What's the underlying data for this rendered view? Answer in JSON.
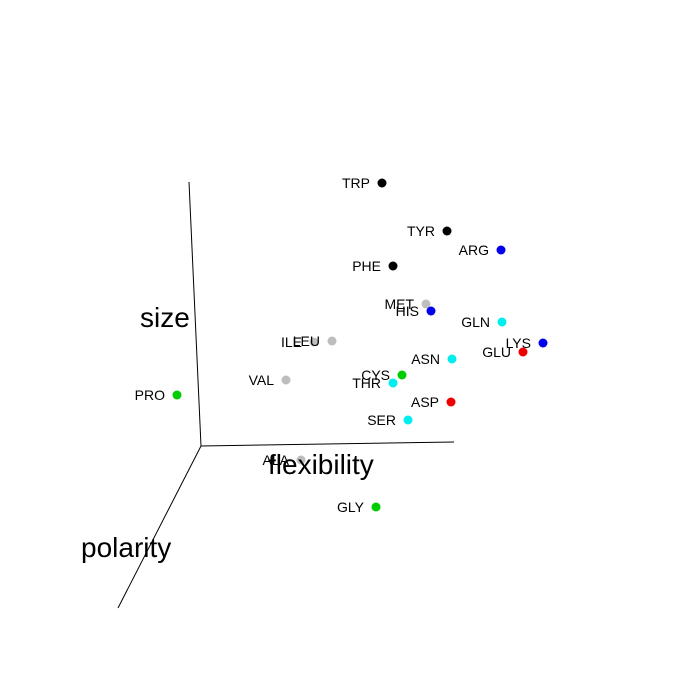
{
  "chart_data": {
    "type": "scatter",
    "projection": "3d",
    "axes": [
      {
        "label": "size"
      },
      {
        "label": "flexibility"
      },
      {
        "label": "polarity"
      }
    ],
    "grid": false,
    "legend": "none",
    "group_colors": {
      "black": "#000000",
      "blue": "#0000ee",
      "gray": "#bebebe",
      "cyan": "#00eeee",
      "red": "#ee0000",
      "green": "#00cd00"
    },
    "points": [
      {
        "label": "TRP",
        "group": "black"
      },
      {
        "label": "TYR",
        "group": "black"
      },
      {
        "label": "ARG",
        "group": "blue"
      },
      {
        "label": "PHE",
        "group": "black"
      },
      {
        "label": "MET",
        "group": "gray"
      },
      {
        "label": "HIS",
        "group": "blue"
      },
      {
        "label": "GLN",
        "group": "cyan"
      },
      {
        "label": "LYS",
        "group": "blue"
      },
      {
        "label": "GLU",
        "group": "red"
      },
      {
        "label": "ILE",
        "group": "gray"
      },
      {
        "label": "LEU",
        "group": "gray"
      },
      {
        "label": "ASN",
        "group": "cyan"
      },
      {
        "label": "CYS",
        "group": "green"
      },
      {
        "label": "VAL",
        "group": "gray"
      },
      {
        "label": "THR",
        "group": "cyan"
      },
      {
        "label": "PRO",
        "group": "green"
      },
      {
        "label": "ASP",
        "group": "red"
      },
      {
        "label": "SER",
        "group": "cyan"
      },
      {
        "label": "ALA",
        "group": "gray"
      },
      {
        "label": "GLY",
        "group": "green"
      }
    ]
  }
}
